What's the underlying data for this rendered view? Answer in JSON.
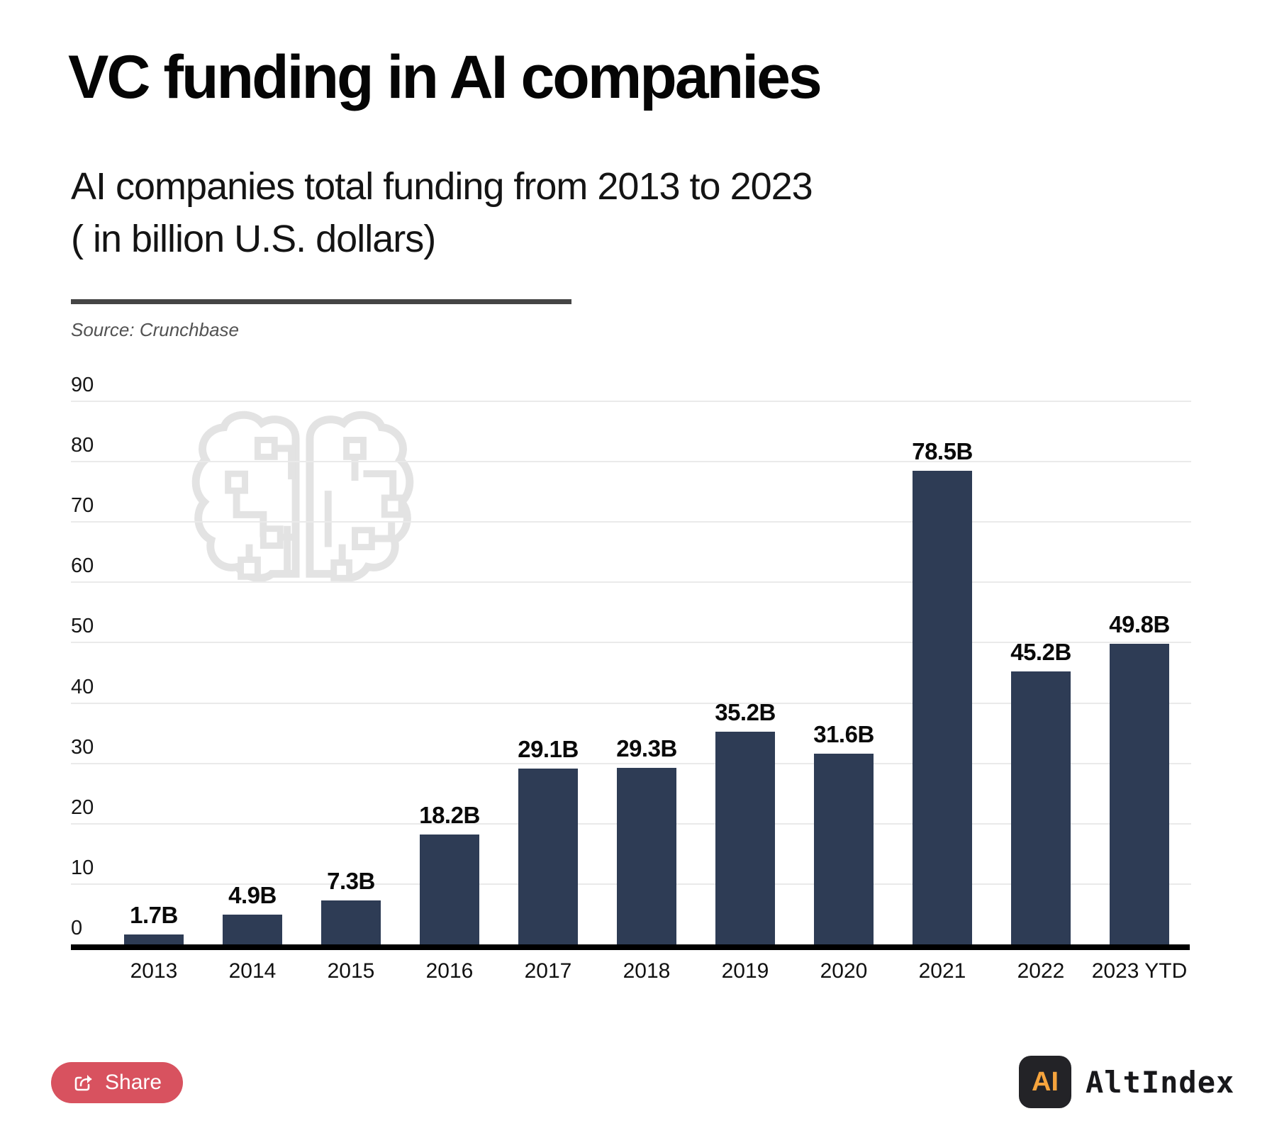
{
  "page": {
    "title": "VC funding in AI companies",
    "subtitle_line1": "AI companies total funding from 2013 to 2023",
    "subtitle_line2": "( in billion U.S. dollars)",
    "source": "Source: Crunchbase"
  },
  "chart_data": {
    "type": "bar",
    "title": "VC funding in AI companies",
    "subtitle": "AI companies total funding from 2013 to 2023 ( in billion U.S. dollars)",
    "source": "Source: Crunchbase",
    "categories": [
      "2013",
      "2014",
      "2015",
      "2016",
      "2017",
      "2018",
      "2019",
      "2020",
      "2021",
      "2022",
      "2023 YTD"
    ],
    "values": [
      1.7,
      4.9,
      7.3,
      18.2,
      29.1,
      29.3,
      35.2,
      31.6,
      78.5,
      45.2,
      49.8
    ],
    "value_labels": [
      "1.7B",
      "4.9B",
      "7.3B",
      "18.2B",
      "29.1B",
      "29.3B",
      "35.2B",
      "31.6B",
      "78.5B",
      "45.2B",
      "49.8B"
    ],
    "xlabel": "",
    "ylabel": "",
    "ylim": [
      0,
      90
    ],
    "yticks": [
      0,
      10,
      20,
      30,
      40,
      50,
      60,
      70,
      80,
      90
    ],
    "grid": true,
    "legend_position": "none"
  },
  "footer": {
    "share_label": "Share",
    "brand_icon_text": "AI",
    "brand_name": "AltIndex"
  },
  "colors": {
    "bar": "#2e3c55",
    "gridline": "#eaeaea",
    "axis": "#000000",
    "share_button": "#d8525f",
    "brand_orange": "#f6a43d",
    "brand_dark": "#232327",
    "watermark": "#e3e3e3"
  }
}
